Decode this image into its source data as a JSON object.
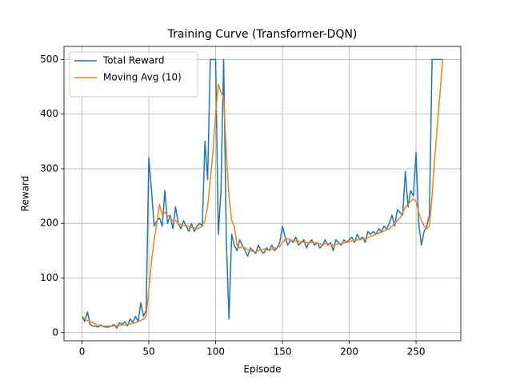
{
  "chart_data": {
    "type": "line",
    "title": "Training Curve (Transformer-DQN)",
    "xlabel": "Episode",
    "ylabel": "Reward",
    "x": [
      0,
      2,
      4,
      6,
      8,
      10,
      12,
      14,
      16,
      18,
      20,
      22,
      24,
      26,
      28,
      30,
      32,
      34,
      36,
      38,
      40,
      42,
      44,
      46,
      48,
      50,
      52,
      54,
      56,
      58,
      60,
      62,
      64,
      66,
      68,
      70,
      72,
      74,
      76,
      78,
      80,
      82,
      84,
      86,
      88,
      90,
      92,
      94,
      96,
      98,
      100,
      102,
      104,
      106,
      108,
      110,
      112,
      114,
      116,
      118,
      120,
      122,
      124,
      126,
      128,
      130,
      132,
      134,
      136,
      138,
      140,
      142,
      144,
      146,
      148,
      150,
      152,
      154,
      156,
      158,
      160,
      162,
      164,
      166,
      168,
      170,
      172,
      174,
      176,
      178,
      180,
      182,
      184,
      186,
      188,
      190,
      192,
      194,
      196,
      198,
      200,
      202,
      204,
      206,
      208,
      210,
      212,
      214,
      216,
      218,
      220,
      222,
      224,
      226,
      228,
      230,
      232,
      234,
      236,
      238,
      240,
      242,
      244,
      246,
      248,
      250,
      252,
      254,
      256,
      258,
      260,
      262,
      264,
      266,
      268,
      270
    ],
    "series": [
      {
        "name": "Total Reward",
        "color": "#1f77b4",
        "values": [
          30,
          20,
          38,
          15,
          12,
          12,
          10,
          14,
          11,
          10,
          10,
          12,
          15,
          8,
          18,
          15,
          20,
          12,
          25,
          18,
          30,
          20,
          55,
          30,
          40,
          320,
          260,
          195,
          205,
          210,
          195,
          260,
          200,
          215,
          190,
          230,
          200,
          190,
          205,
          195,
          185,
          200,
          185,
          195,
          200,
          195,
          350,
          280,
          500,
          500,
          500,
          180,
          260,
          500,
          170,
          25,
          180,
          160,
          150,
          170,
          160,
          150,
          140,
          155,
          150,
          145,
          160,
          150,
          145,
          155,
          150,
          160,
          150,
          155,
          165,
          195,
          175,
          160,
          170,
          165,
          175,
          160,
          165,
          170,
          155,
          165,
          170,
          160,
          165,
          155,
          160,
          170,
          160,
          165,
          150,
          170,
          165,
          160,
          170,
          165,
          170,
          175,
          165,
          180,
          170,
          175,
          165,
          185,
          180,
          185,
          180,
          190,
          185,
          195,
          190,
          200,
          215,
          195,
          225,
          220,
          215,
          295,
          230,
          260,
          250,
          330,
          200,
          160,
          185,
          195,
          215,
          500,
          500,
          500,
          500,
          500
        ]
      },
      {
        "name": "Moving Avg (10)",
        "color": "#ff7f0e",
        "values": [
          30,
          25,
          22,
          20,
          18,
          16,
          13,
          12,
          12,
          12,
          12,
          12,
          12,
          13,
          13,
          14,
          14,
          15,
          16,
          17,
          18,
          20,
          22,
          25,
          30,
          80,
          130,
          170,
          200,
          235,
          215,
          220,
          215,
          210,
          205,
          205,
          200,
          198,
          196,
          195,
          195,
          193,
          192,
          190,
          192,
          195,
          205,
          230,
          280,
          330,
          400,
          455,
          440,
          430,
          330,
          250,
          205,
          195,
          160,
          155,
          158,
          155,
          152,
          150,
          148,
          148,
          150,
          152,
          153,
          152,
          150,
          152,
          155,
          155,
          158,
          165,
          170,
          172,
          170,
          168,
          168,
          167,
          166,
          165,
          165,
          164,
          165,
          165,
          164,
          162,
          162,
          163,
          163,
          162,
          160,
          161,
          163,
          163,
          164,
          165,
          166,
          168,
          168,
          170,
          170,
          172,
          173,
          174,
          176,
          178,
          180,
          182,
          184,
          186,
          188,
          190,
          195,
          200,
          205,
          210,
          220,
          230,
          235,
          240,
          245,
          240,
          220,
          205,
          195,
          190,
          195,
          250,
          320,
          380,
          440,
          500
        ]
      }
    ],
    "xlim": [
      -13.5,
      283.5
    ],
    "ylim": [
      -15,
      524
    ],
    "xticks": [
      0,
      50,
      100,
      150,
      200,
      250
    ],
    "yticks": [
      0,
      100,
      200,
      300,
      400,
      500
    ],
    "grid": true,
    "legend": "upper-left"
  }
}
